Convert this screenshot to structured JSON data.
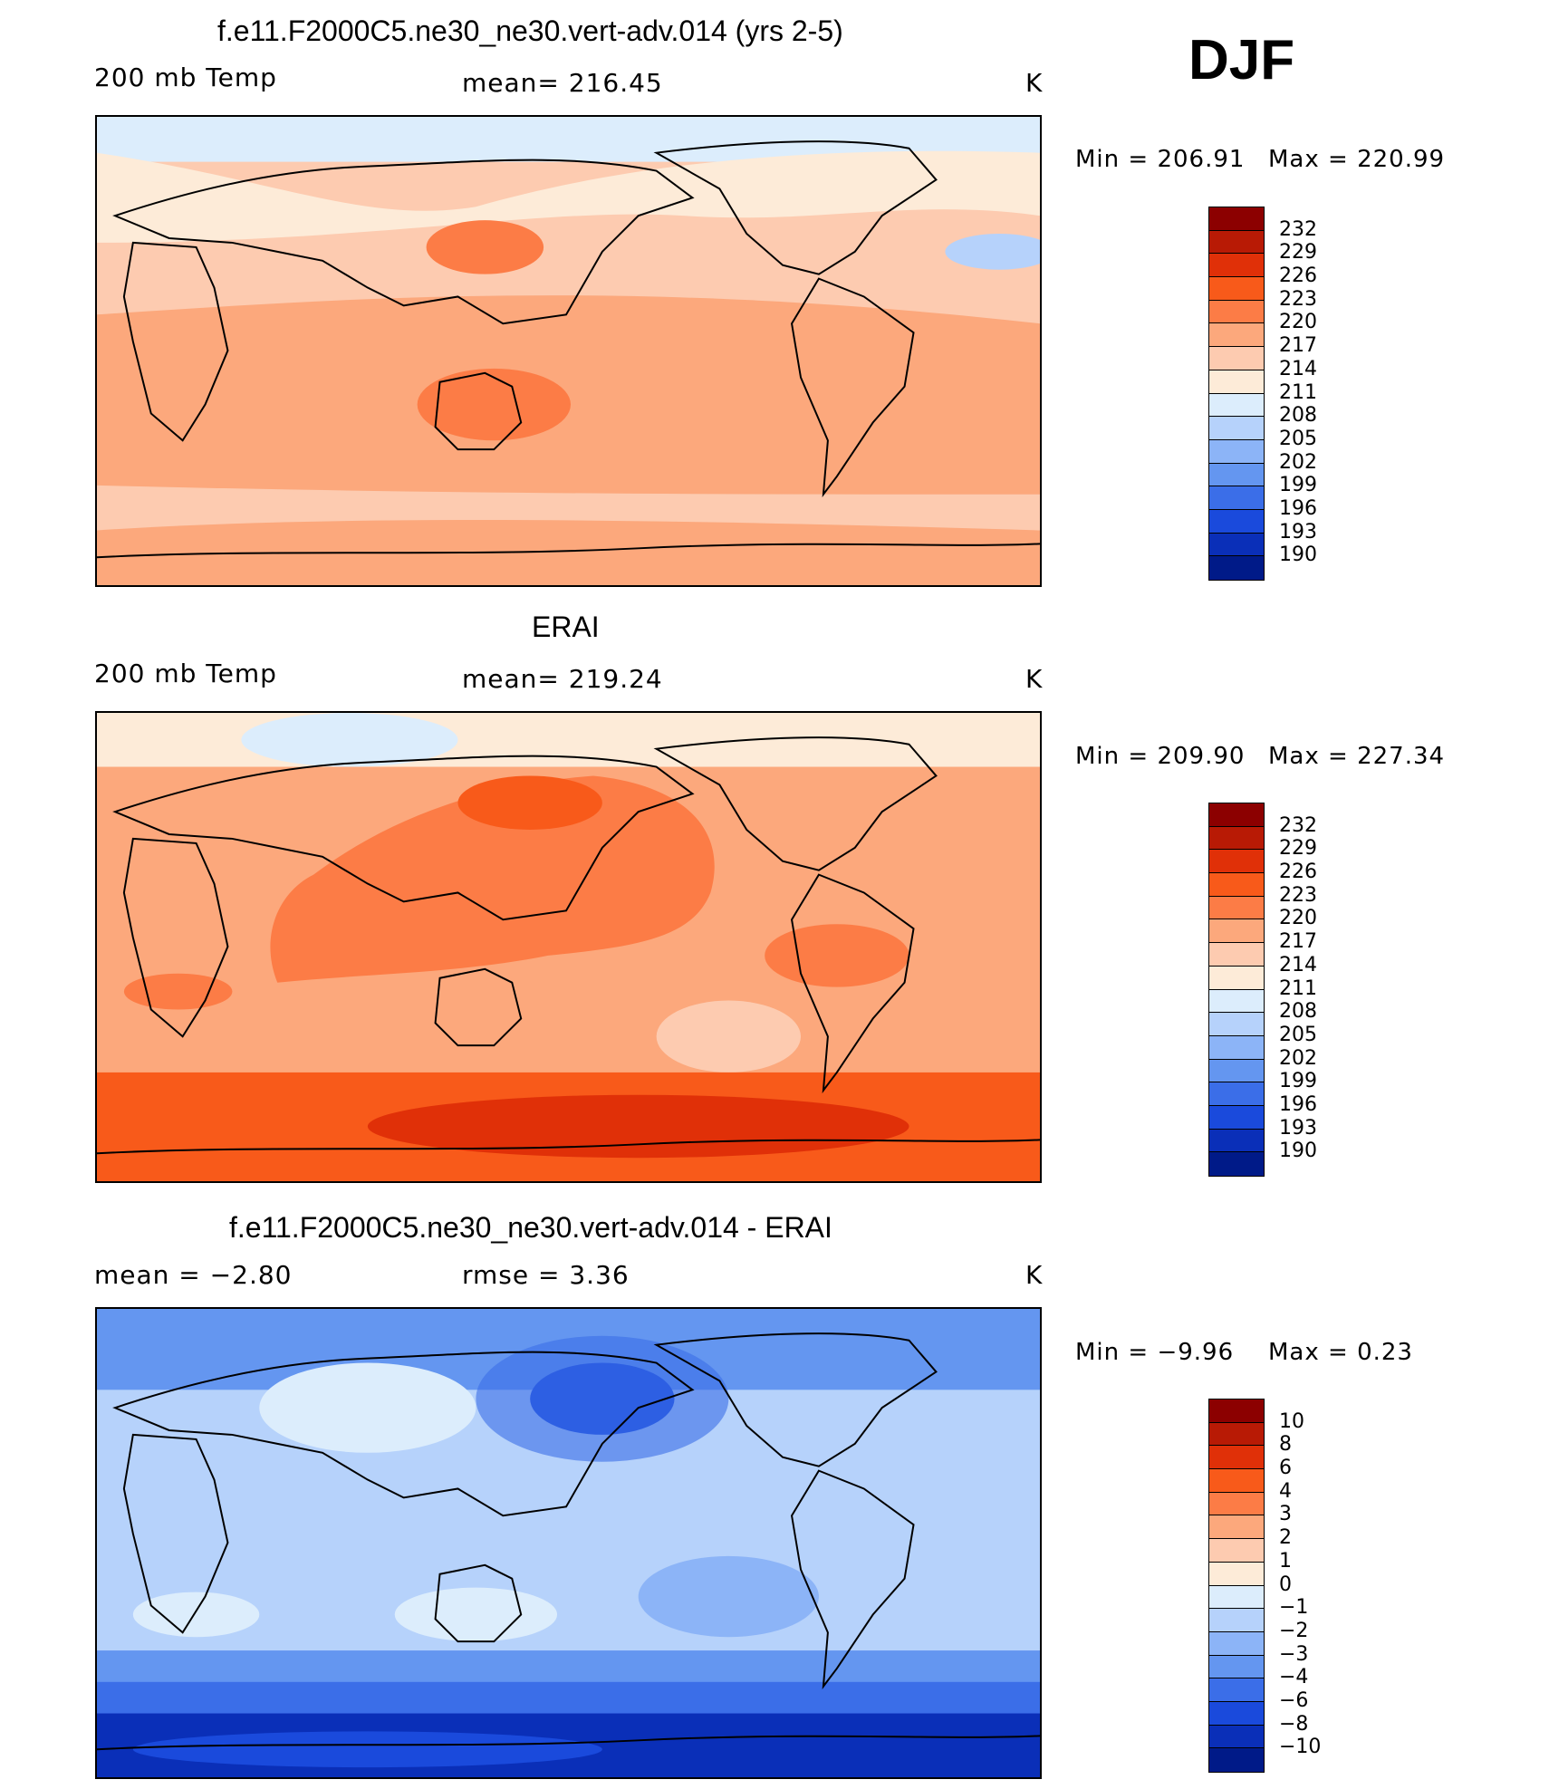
{
  "season": "DJF",
  "panels": [
    {
      "title": "f.e11.F2000C5.ne30_ne30.vert-adv.014 (yrs 2-5)",
      "left_label": "200 mb Temp",
      "center_label": "mean=  216.45",
      "units": "K",
      "min_label": "Min  =  206.91",
      "max_label": "Max  =  220.99",
      "min": 206.91,
      "max": 220.99,
      "mean": 216.45,
      "colorbar_ticks": [
        "232",
        "229",
        "226",
        "223",
        "220",
        "217",
        "214",
        "211",
        "208",
        "205",
        "202",
        "199",
        "196",
        "193",
        "190"
      ],
      "colorbar_colors": [
        "#8c0000",
        "#b81a05",
        "#e03008",
        "#f85a1a",
        "#fc7c46",
        "#fca87c",
        "#fdcbb0",
        "#fdebd8",
        "#dcedfc",
        "#b6d2fb",
        "#8cb4f7",
        "#6496f0",
        "#3b6ee8",
        "#1a4adc",
        "#0a2fb8",
        "#001a88"
      ],
      "field": "model"
    },
    {
      "title": "ERAI",
      "left_label": "200 mb Temp",
      "center_label": "mean=  219.24",
      "units": "K",
      "min_label": "Min  =  209.90",
      "max_label": "Max  =  227.34",
      "min": 209.9,
      "max": 227.34,
      "mean": 219.24,
      "colorbar_ticks": [
        "232",
        "229",
        "226",
        "223",
        "220",
        "217",
        "214",
        "211",
        "208",
        "205",
        "202",
        "199",
        "196",
        "193",
        "190"
      ],
      "colorbar_colors": [
        "#8c0000",
        "#b81a05",
        "#e03008",
        "#f85a1a",
        "#fc7c46",
        "#fca87c",
        "#fdcbb0",
        "#fdebd8",
        "#dcedfc",
        "#b6d2fb",
        "#8cb4f7",
        "#6496f0",
        "#3b6ee8",
        "#1a4adc",
        "#0a2fb8",
        "#001a88"
      ],
      "field": "obs"
    },
    {
      "title": "f.e11.F2000C5.ne30_ne30.vert-adv.014 - ERAI",
      "left_label": "mean =    −2.80",
      "center_label": "rmse =     3.36",
      "units": "K",
      "min_label": "Min  =    −9.96",
      "max_label": "Max  =     0.23",
      "min": -9.96,
      "max": 0.23,
      "mean": -2.8,
      "rmse": 3.36,
      "colorbar_ticks": [
        "10",
        "8",
        "6",
        "4",
        "3",
        "2",
        "1",
        "0",
        "−1",
        "−2",
        "−3",
        "−4",
        "−6",
        "−8",
        "−10"
      ],
      "colorbar_colors": [
        "#8c0000",
        "#b81a05",
        "#e03008",
        "#f85a1a",
        "#fc7c46",
        "#fca87c",
        "#fdcbb0",
        "#fdebd8",
        "#dcedfc",
        "#b6d2fb",
        "#8cb4f7",
        "#6496f0",
        "#3b6ee8",
        "#1a4adc",
        "#0a2fb8",
        "#001a88"
      ],
      "field": "diff"
    }
  ]
}
